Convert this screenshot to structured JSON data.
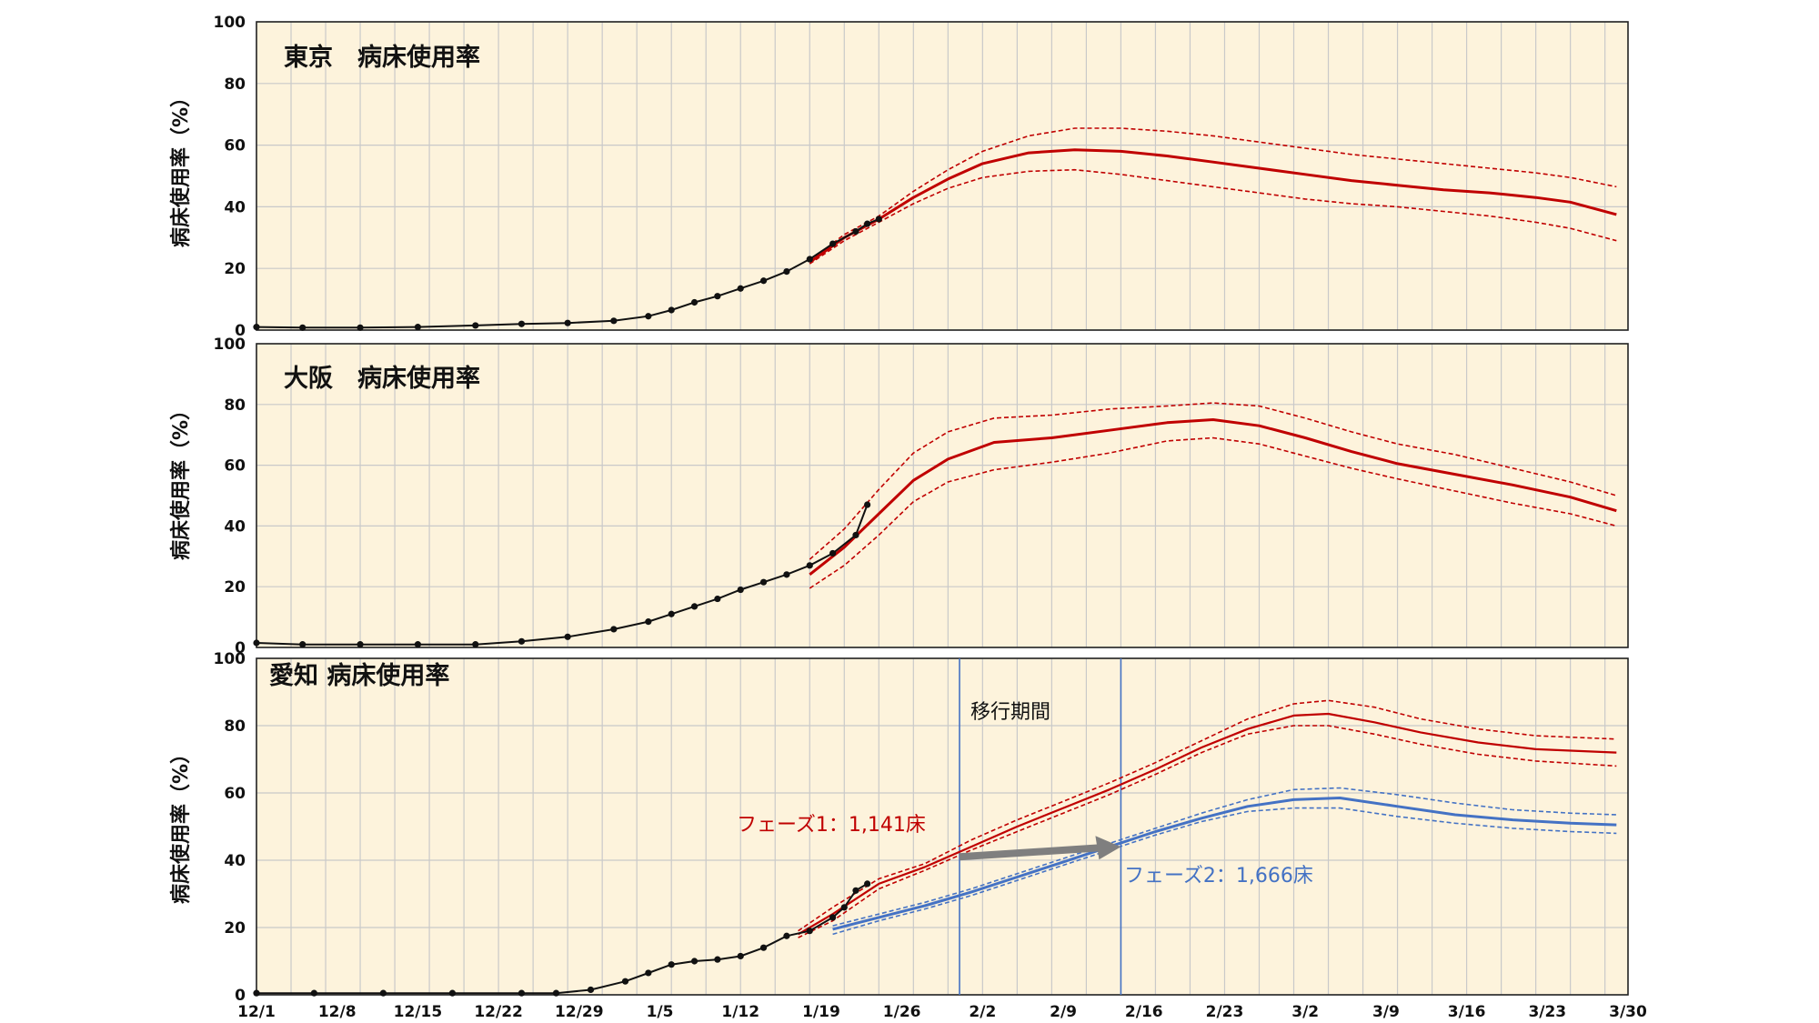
{
  "colors": {
    "panel_bg": "#fdf3dc",
    "grid": "#c9c9c9",
    "observed": "#111111",
    "phase1": "#c00000",
    "phase2": "#4472c4",
    "arrow": "#7f7f7f",
    "transition_line": "#4472c4"
  },
  "chart_data": [
    {
      "type": "line",
      "title": "東京　病床使用率",
      "ylabel": "病床使用率（%）",
      "ylim": [
        0,
        100
      ],
      "yticks": [
        0,
        20,
        40,
        60,
        80,
        100
      ],
      "xlim": [
        "2021-12-01",
        "2022-03-30"
      ],
      "x_dates": [
        "2021-12-01",
        "2021-12-14",
        "2021-12-28",
        "2022-01-03",
        "2022-01-07",
        "2022-01-12",
        "2022-01-16",
        "2022-01-19",
        "2022-01-23",
        "2022-01-28",
        "2022-02-02",
        "2022-02-07",
        "2022-02-12",
        "2022-02-19",
        "2022-02-26",
        "2022-03-05",
        "2022-03-12",
        "2022-03-19",
        "2022-03-24",
        "2022-03-29"
      ],
      "observed": {
        "x": [
          "2021-12-01",
          "2021-12-05",
          "2021-12-10",
          "2021-12-15",
          "2021-12-20",
          "2021-12-24",
          "2021-12-28",
          "2022-01-01",
          "2022-01-04",
          "2022-01-06",
          "2022-01-08",
          "2022-01-10",
          "2022-01-12",
          "2022-01-14",
          "2022-01-16",
          "2022-01-18",
          "2022-01-20",
          "2022-01-22",
          "2022-01-23",
          "2022-01-24"
        ],
        "y": [
          1,
          0.8,
          0.8,
          1,
          1.5,
          2,
          2.3,
          3,
          4.5,
          6.5,
          9,
          11,
          13.5,
          16,
          19,
          23,
          28,
          32,
          34.5,
          36
        ]
      },
      "series": [
        {
          "name": "",
          "kind": "forecast",
          "x": [
            "2022-01-18",
            "2022-01-21",
            "2022-01-24",
            "2022-01-27",
            "2022-01-30",
            "2022-02-02",
            "2022-02-06",
            "2022-02-10",
            "2022-02-14",
            "2022-02-18",
            "2022-02-22",
            "2022-02-26",
            "2022-03-02",
            "2022-03-06",
            "2022-03-10",
            "2022-03-14",
            "2022-03-18",
            "2022-03-22",
            "2022-03-25",
            "2022-03-29"
          ],
          "y": [
            22,
            30,
            36,
            43,
            49,
            54,
            57.5,
            58.5,
            58,
            56.5,
            54.5,
            52.5,
            50.5,
            48.5,
            47,
            45.5,
            44.5,
            43,
            41.5,
            37.5
          ]
        },
        {
          "name": "",
          "kind": "upper",
          "x": [
            "2022-01-18",
            "2022-01-21",
            "2022-01-24",
            "2022-01-27",
            "2022-01-30",
            "2022-02-02",
            "2022-02-06",
            "2022-02-10",
            "2022-02-14",
            "2022-02-18",
            "2022-02-22",
            "2022-02-26",
            "2022-03-02",
            "2022-03-06",
            "2022-03-10",
            "2022-03-14",
            "2022-03-18",
            "2022-03-22",
            "2022-03-25",
            "2022-03-29"
          ],
          "y": [
            22.5,
            31,
            37,
            45,
            52,
            58,
            63,
            65.5,
            65.5,
            64.5,
            63,
            61,
            59,
            57,
            55.5,
            54,
            52.5,
            51,
            49.5,
            46.5
          ]
        },
        {
          "name": "",
          "kind": "lower",
          "x": [
            "2022-01-18",
            "2022-01-21",
            "2022-01-24",
            "2022-01-27",
            "2022-01-30",
            "2022-02-02",
            "2022-02-06",
            "2022-02-10",
            "2022-02-14",
            "2022-02-18",
            "2022-02-22",
            "2022-02-26",
            "2022-03-02",
            "2022-03-06",
            "2022-03-10",
            "2022-03-14",
            "2022-03-18",
            "2022-03-22",
            "2022-03-25",
            "2022-03-29"
          ],
          "y": [
            21.5,
            29,
            35,
            41,
            46,
            49.5,
            51.5,
            52,
            50.5,
            48.5,
            46.5,
            44.5,
            42.5,
            41,
            40,
            38.5,
            37,
            35,
            33,
            29
          ]
        }
      ]
    },
    {
      "type": "line",
      "title": "大阪　病床使用率",
      "ylabel": "病床使用率（%）",
      "ylim": [
        0,
        100
      ],
      "yticks": [
        0,
        20,
        40,
        60,
        80,
        100
      ],
      "xlim": [
        "2021-12-01",
        "2022-03-30"
      ],
      "observed": {
        "x": [
          "2021-12-01",
          "2021-12-05",
          "2021-12-10",
          "2021-12-15",
          "2021-12-20",
          "2021-12-24",
          "2021-12-28",
          "2022-01-01",
          "2022-01-04",
          "2022-01-06",
          "2022-01-08",
          "2022-01-10",
          "2022-01-12",
          "2022-01-14",
          "2022-01-16",
          "2022-01-18",
          "2022-01-20",
          "2022-01-22",
          "2022-01-23"
        ],
        "y": [
          1.5,
          1,
          1,
          1,
          1,
          2,
          3.5,
          6,
          8.5,
          11,
          13.5,
          16,
          19,
          21.5,
          24,
          27,
          31,
          37,
          47
        ]
      },
      "series": [
        {
          "name": "",
          "kind": "forecast",
          "x": [
            "2022-01-18",
            "2022-01-21",
            "2022-01-24",
            "2022-01-27",
            "2022-01-30",
            "2022-02-03",
            "2022-02-08",
            "2022-02-13",
            "2022-02-18",
            "2022-02-22",
            "2022-02-26",
            "2022-03-02",
            "2022-03-06",
            "2022-03-10",
            "2022-03-15",
            "2022-03-20",
            "2022-03-25",
            "2022-03-29"
          ],
          "y": [
            24,
            33,
            44,
            55,
            62,
            67.5,
            69,
            71.5,
            74,
            75,
            73,
            69,
            64.5,
            60.5,
            57,
            53.5,
            49.5,
            45
          ]
        },
        {
          "name": "",
          "kind": "upper",
          "x": [
            "2022-01-18",
            "2022-01-21",
            "2022-01-24",
            "2022-01-27",
            "2022-01-30",
            "2022-02-03",
            "2022-02-08",
            "2022-02-13",
            "2022-02-18",
            "2022-02-22",
            "2022-02-26",
            "2022-03-02",
            "2022-03-06",
            "2022-03-10",
            "2022-03-15",
            "2022-03-20",
            "2022-03-25",
            "2022-03-29"
          ],
          "y": [
            29,
            39,
            52,
            64,
            71,
            75.5,
            76.5,
            78.5,
            79.5,
            80.5,
            79.5,
            75.5,
            71,
            67,
            63.5,
            59,
            54.5,
            50
          ]
        },
        {
          "name": "",
          "kind": "lower",
          "x": [
            "2022-01-18",
            "2022-01-21",
            "2022-01-24",
            "2022-01-27",
            "2022-01-30",
            "2022-02-03",
            "2022-02-08",
            "2022-02-13",
            "2022-02-18",
            "2022-02-22",
            "2022-02-26",
            "2022-03-02",
            "2022-03-06",
            "2022-03-10",
            "2022-03-15",
            "2022-03-20",
            "2022-03-25",
            "2022-03-29"
          ],
          "y": [
            19.5,
            27,
            37,
            48,
            54.5,
            58.5,
            61,
            64,
            68,
            69,
            67,
            63,
            59,
            55.5,
            51.5,
            47.5,
            44,
            40
          ]
        }
      ]
    },
    {
      "type": "line",
      "title": "愛知 病床使用率",
      "ylabel": "病床使用率（%）",
      "ylim": [
        0,
        100
      ],
      "yticks": [
        0,
        20,
        40,
        60,
        80,
        100
      ],
      "xlim": [
        "2021-12-01",
        "2022-03-30"
      ],
      "xticks": [
        "12/1",
        "12/8",
        "12/15",
        "12/22",
        "12/29",
        "1/5",
        "1/12",
        "1/19",
        "1/26",
        "2/2",
        "2/9",
        "2/16",
        "2/23",
        "3/2",
        "3/9",
        "3/16",
        "3/23",
        "3/30"
      ],
      "transition_period": {
        "label": "移行期間",
        "start": "2022-01-31",
        "end": "2022-02-14"
      },
      "annotations": {
        "phase1_label": "フェーズ1：1,141床",
        "phase2_label": "フェーズ2：1,666床"
      },
      "observed": {
        "x": [
          "2021-12-01",
          "2021-12-06",
          "2021-12-12",
          "2021-12-18",
          "2021-12-24",
          "2021-12-27",
          "2021-12-30",
          "2022-01-02",
          "2022-01-04",
          "2022-01-06",
          "2022-01-08",
          "2022-01-10",
          "2022-01-12",
          "2022-01-14",
          "2022-01-16",
          "2022-01-18",
          "2022-01-20",
          "2022-01-21",
          "2022-01-22",
          "2022-01-23"
        ],
        "y": [
          0.5,
          0.5,
          0.5,
          0.5,
          0.5,
          0.5,
          1.5,
          4,
          6.5,
          9,
          10,
          10.5,
          11.5,
          14,
          17.5,
          19,
          23,
          26,
          31,
          33
        ]
      },
      "series": [
        {
          "name": "",
          "kind": "forecast",
          "phase": 1,
          "x": [
            "2022-01-17",
            "2022-01-20",
            "2022-01-24",
            "2022-01-28",
            "2022-02-01",
            "2022-02-05",
            "2022-02-09",
            "2022-02-13",
            "2022-02-17",
            "2022-02-21",
            "2022-02-25",
            "2022-03-01",
            "2022-03-04",
            "2022-03-08",
            "2022-03-12",
            "2022-03-17",
            "2022-03-22",
            "2022-03-29"
          ],
          "y": [
            18,
            24,
            33,
            38,
            44,
            50,
            55.5,
            61,
            67,
            73.5,
            79,
            83,
            83.5,
            81,
            78,
            75,
            73,
            72
          ]
        },
        {
          "name": "",
          "kind": "upper",
          "phase": 1,
          "x": [
            "2022-01-17",
            "2022-01-20",
            "2022-01-24",
            "2022-01-28",
            "2022-02-01",
            "2022-02-05",
            "2022-02-09",
            "2022-02-13",
            "2022-02-17",
            "2022-02-21",
            "2022-02-25",
            "2022-03-01",
            "2022-03-04",
            "2022-03-08",
            "2022-03-12",
            "2022-03-17",
            "2022-03-22",
            "2022-03-29"
          ],
          "y": [
            19,
            26,
            34.5,
            39,
            46,
            52,
            57.5,
            63,
            69,
            75.5,
            82,
            86.5,
            87.5,
            85.5,
            82,
            79,
            77,
            76
          ]
        },
        {
          "name": "",
          "kind": "lower",
          "phase": 1,
          "x": [
            "2022-01-17",
            "2022-01-20",
            "2022-01-24",
            "2022-01-28",
            "2022-02-01",
            "2022-02-05",
            "2022-02-09",
            "2022-02-13",
            "2022-02-17",
            "2022-02-21",
            "2022-02-25",
            "2022-03-01",
            "2022-03-04",
            "2022-03-08",
            "2022-03-12",
            "2022-03-17",
            "2022-03-22",
            "2022-03-29"
          ],
          "y": [
            17,
            22,
            31.5,
            37,
            43,
            48.5,
            54,
            59.5,
            65.5,
            72,
            77.5,
            80,
            80,
            77.5,
            74.5,
            71.5,
            69.5,
            68
          ]
        },
        {
          "name": "",
          "kind": "forecast",
          "phase": 2,
          "x": [
            "2022-01-20",
            "2022-01-24",
            "2022-01-28",
            "2022-02-01",
            "2022-02-05",
            "2022-02-09",
            "2022-02-13",
            "2022-02-17",
            "2022-02-21",
            "2022-02-25",
            "2022-03-01",
            "2022-03-05",
            "2022-03-10",
            "2022-03-15",
            "2022-03-20",
            "2022-03-25",
            "2022-03-29"
          ],
          "y": [
            19.5,
            23,
            26.5,
            30.5,
            35,
            39.5,
            44,
            48.5,
            52.5,
            56,
            58,
            58.5,
            56,
            53.5,
            52,
            51,
            50.5
          ]
        },
        {
          "name": "",
          "kind": "upper",
          "phase": 2,
          "x": [
            "2022-01-20",
            "2022-01-24",
            "2022-01-28",
            "2022-02-01",
            "2022-02-05",
            "2022-02-09",
            "2022-02-13",
            "2022-02-17",
            "2022-02-21",
            "2022-02-25",
            "2022-03-01",
            "2022-03-05",
            "2022-03-10",
            "2022-03-15",
            "2022-03-20",
            "2022-03-25",
            "2022-03-29"
          ],
          "y": [
            20.5,
            24,
            27.5,
            31.5,
            36,
            40.5,
            45,
            49.5,
            54,
            58,
            61,
            61.5,
            59.5,
            57,
            55,
            54,
            53.5
          ]
        },
        {
          "name": "",
          "kind": "lower",
          "phase": 2,
          "x": [
            "2022-01-20",
            "2022-01-24",
            "2022-01-28",
            "2022-02-01",
            "2022-02-05",
            "2022-02-09",
            "2022-02-13",
            "2022-02-17",
            "2022-02-21",
            "2022-02-25",
            "2022-03-01",
            "2022-03-05",
            "2022-03-10",
            "2022-03-15",
            "2022-03-20",
            "2022-03-25",
            "2022-03-29"
          ],
          "y": [
            18,
            22,
            25.5,
            29.5,
            34,
            38.5,
            43,
            47.5,
            51.5,
            54.5,
            55.5,
            55.5,
            53,
            51,
            49.5,
            48.5,
            48
          ]
        }
      ]
    }
  ]
}
